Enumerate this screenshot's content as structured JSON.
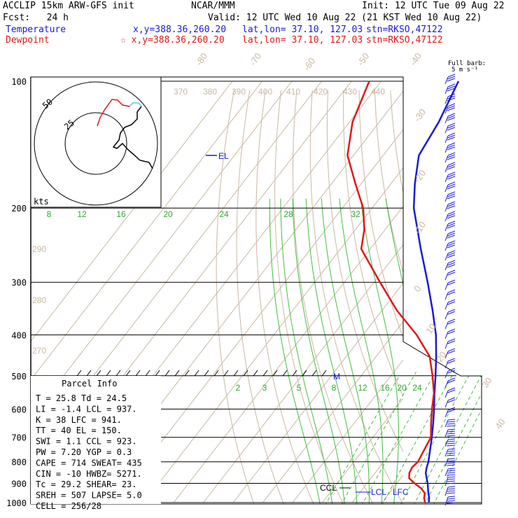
{
  "header": {
    "model": "ACCLIP 15km ARW-GFS init",
    "center": "NCAR/MMM",
    "init": "Init: 12 UTC Tue 09 Aug 22",
    "fcst": "Fcst:   24 h",
    "valid": "Valid: 12 UTC Wed 10 Aug 22 (21 KST Wed 10 Aug 22)",
    "temp_label": "Temperature",
    "temp_xy": "x,y=388.36,260.20",
    "temp_latlon": "lat,lon= 37.10, 127.03",
    "temp_stn": "stn=RKSO,47122",
    "dew_label": "Dewpoint",
    "dew_xy": "☆ x,y=388.36,260.20",
    "dew_latlon": "lat,lon= 37.10, 127.03",
    "dew_stn": "stn=RKSO,47122"
  },
  "barb_key": {
    "line1": "Full barb:",
    "line2": "5 m s⁻¹"
  },
  "hodo": {
    "kts": "kts",
    "ring_inner": "25",
    "ring_outer": "50"
  },
  "parcel_title": "Parcel Info",
  "parcel_rows": [
    "T  =    25.8  Td =  24.5",
    "LI =    -1.4  LCL =  937.",
    "K  =      38  LFC =  941.",
    "TT =      40  EL  =  150.",
    "SWI =    1.1  CCL =  923.",
    "PW =    7.20  YGP =   0.3",
    "CAPE =   714  SWEAT=  435",
    "CIN =    -10  HWBZ= 5271.",
    "Tc =    29.2  SHEAR=  23.",
    "SREH =   507  LAPSE=  5.0",
    "CELL = 256/28"
  ],
  "level_labels": {
    "el": "EL",
    "ccl": "CCL",
    "lcl": "LCL",
    "lfc": "LFC",
    "m": "M"
  },
  "chart_data": {
    "type": "skew-t",
    "y_axis": "pressure (hPa), log scale",
    "pressure_ticks": [
      100,
      200,
      300,
      400,
      500,
      600,
      700,
      800,
      900,
      1000
    ],
    "isotherm_labels": [
      "-80",
      "-70",
      "-60",
      "-50",
      "-40",
      "-30",
      "-20",
      "-10",
      "0",
      "10",
      "20",
      "30",
      "40"
    ],
    "theta_labels_top": [
      "370",
      "380",
      "390",
      "400",
      "410",
      "420",
      "430",
      "440"
    ],
    "theta_labels_side": [
      "290",
      "280",
      "270"
    ],
    "mixing_ratio_labels_upper": [
      "8",
      "12",
      "16",
      "20",
      "24",
      "28",
      "32"
    ],
    "mixing_ratio_labels_lower": [
      "2",
      "3",
      "5",
      "8",
      "12",
      "16",
      "20",
      "24"
    ],
    "series": [
      {
        "name": "Temperature",
        "color": "#1a1ad6",
        "p": [
          1000,
          975,
          950,
          925,
          900,
          875,
          850,
          825,
          800,
          750,
          700,
          650,
          600,
          550,
          500,
          450,
          400,
          350,
          300,
          250,
          200,
          175,
          150,
          125,
          100
        ],
        "t": [
          25.8,
          24.7,
          23.2,
          21.8,
          20.4,
          18.7,
          17.0,
          15.9,
          15.0,
          12.5,
          9.8,
          6.7,
          3.2,
          -0.8,
          -5.0,
          -9.8,
          -15.5,
          -23.0,
          -32.0,
          -43.0,
          -56.0,
          -62.0,
          -68.0,
          -70.0,
          -74.0
        ]
      },
      {
        "name": "Dewpoint",
        "color": "#e01818",
        "p": [
          1000,
          975,
          950,
          925,
          900,
          875,
          850,
          825,
          800,
          750,
          700,
          650,
          600,
          550,
          500,
          450,
          400,
          350,
          300,
          250,
          225,
          200,
          175,
          150,
          125,
          100
        ],
        "td": [
          24.5,
          23.0,
          22.0,
          19.5,
          16.0,
          12.8,
          11.5,
          11.0,
          11.5,
          10.5,
          9.5,
          6.0,
          2.5,
          -1.0,
          -6.0,
          -12.0,
          -22.0,
          -35.0,
          -48.0,
          -63.0,
          -67.0,
          -73.0,
          -82.0,
          -92.0,
          -99.0,
          -104.0
        ]
      }
    ]
  }
}
